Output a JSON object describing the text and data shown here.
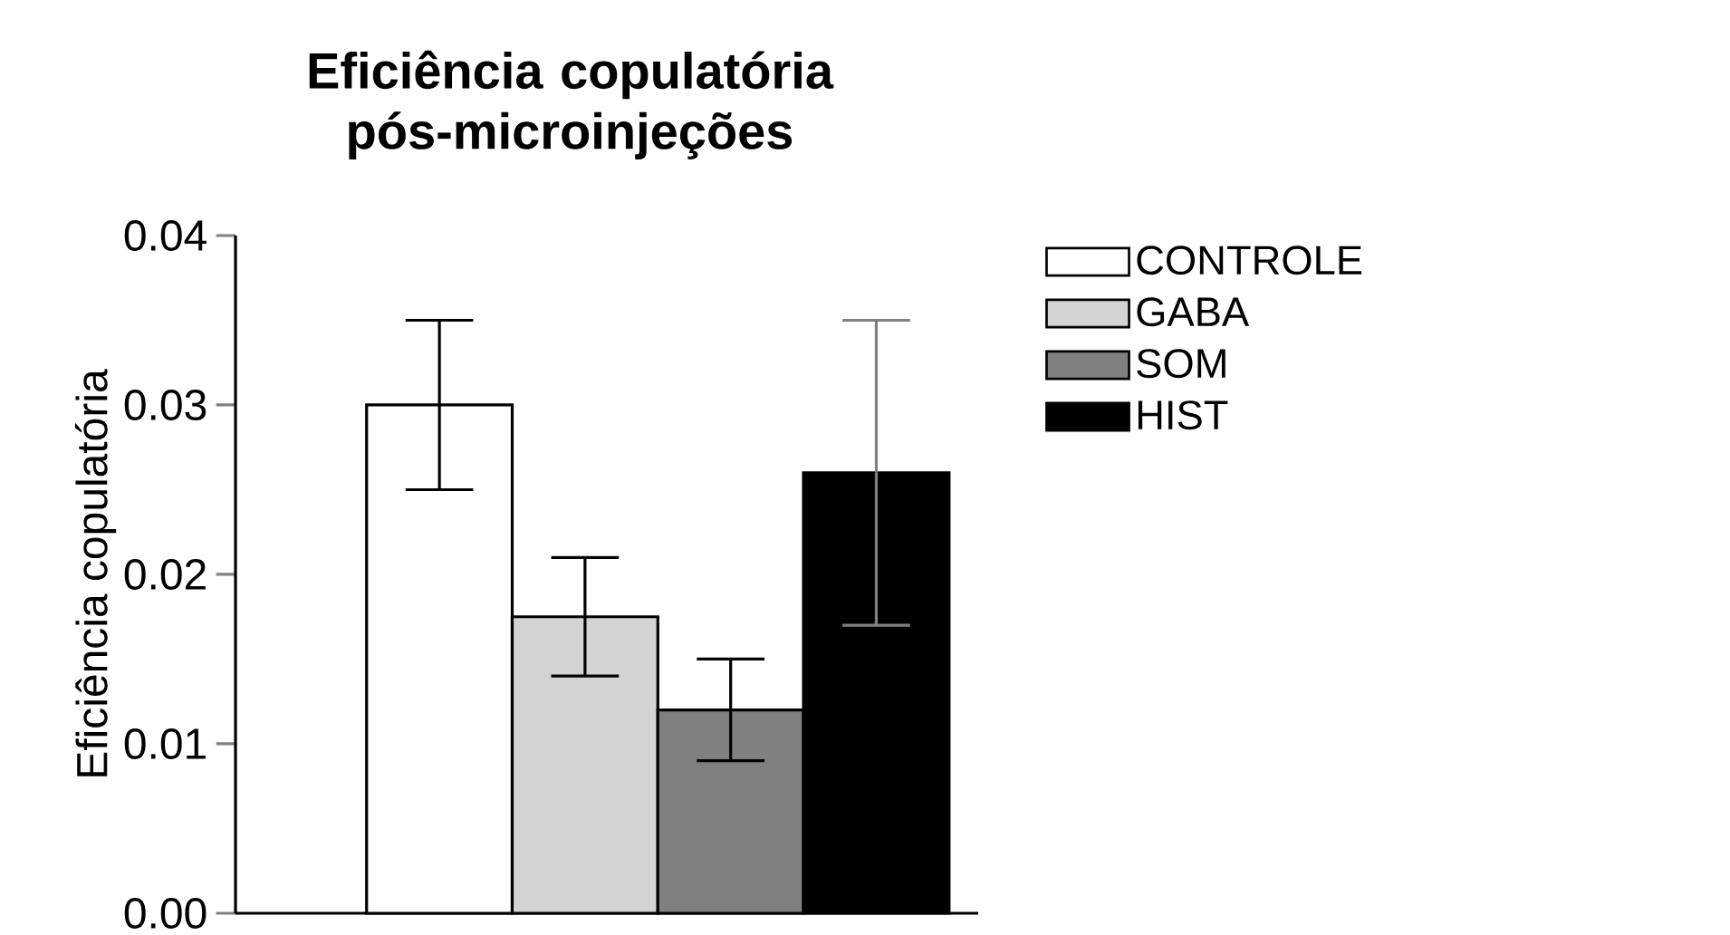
{
  "chart_data": {
    "type": "bar",
    "title": "Eficiência copulatória pós-microinjeções",
    "ylabel": "Eficiência copulatória",
    "categories": [
      null
    ],
    "series": [
      {
        "name": "CONTROLE",
        "color": "#ffffff",
        "values": [
          0.03
        ],
        "errors": [
          [
            0.025,
            0.035
          ]
        ]
      },
      {
        "name": "GABA",
        "color": "#d3d3d3",
        "values": [
          0.0175
        ],
        "errors": [
          [
            0.014,
            0.021
          ]
        ]
      },
      {
        "name": "SOM",
        "color": "#808080",
        "values": [
          0.012
        ],
        "errors": [
          [
            0.009,
            0.015
          ]
        ]
      },
      {
        "name": "HIST",
        "color": "#000000",
        "values": [
          0.026
        ],
        "errors": [
          [
            0.017,
            0.035
          ]
        ]
      }
    ],
    "ylim": [
      0,
      0.04
    ],
    "yticks": [
      {
        "value": 0,
        "label": "0.00"
      },
      {
        "value": 0.01,
        "label": "0.01"
      },
      {
        "value": 0.02,
        "label": "0.02"
      },
      {
        "value": 0.03,
        "label": "0.03"
      },
      {
        "value": 0.04,
        "label": "0.04"
      }
    ],
    "legend": "right",
    "grid": false
  }
}
